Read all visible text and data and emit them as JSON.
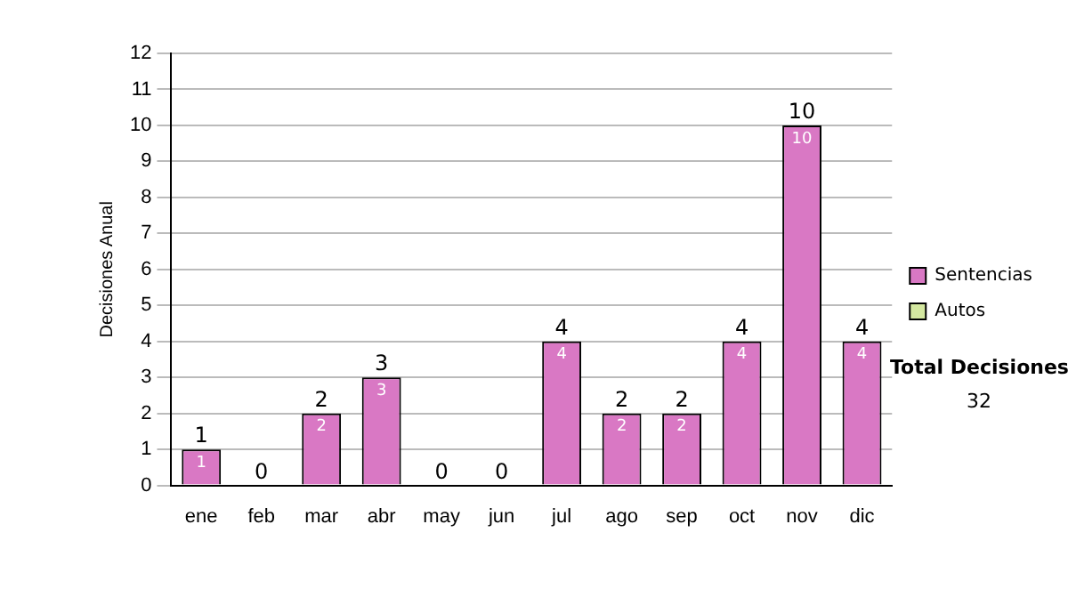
{
  "chart_data": {
    "type": "bar",
    "stacked": true,
    "ylabel": "Decisiones Anual",
    "categories": [
      "ene",
      "feb",
      "mar",
      "abr",
      "may",
      "jun",
      "jul",
      "ago",
      "sep",
      "oct",
      "nov",
      "dic"
    ],
    "series": [
      {
        "name": "Sentencias",
        "color": "#d978c4",
        "values": [
          1,
          0,
          2,
          3,
          0,
          0,
          4,
          2,
          2,
          4,
          10,
          4
        ],
        "value_labels": [
          "1",
          null,
          "2",
          "3",
          null,
          null,
          "4",
          "2",
          "2",
          "4",
          "10",
          "4"
        ]
      },
      {
        "name": "Autos",
        "color": "#d4e8a0",
        "values": [
          0,
          0,
          0,
          0,
          0,
          0,
          0,
          0,
          0,
          0,
          0,
          0
        ]
      }
    ],
    "totals": [
      "1",
      "0",
      "2",
      "3",
      "0",
      "0",
      "4",
      "2",
      "2",
      "4",
      "10",
      "4"
    ],
    "ylim": [
      0,
      12
    ],
    "yticks": [
      0,
      1,
      2,
      3,
      4,
      5,
      6,
      7,
      8,
      9,
      10,
      11,
      12
    ],
    "grid": "y",
    "legend": "right",
    "annotations": [
      "Total Decisiones",
      "32"
    ]
  }
}
